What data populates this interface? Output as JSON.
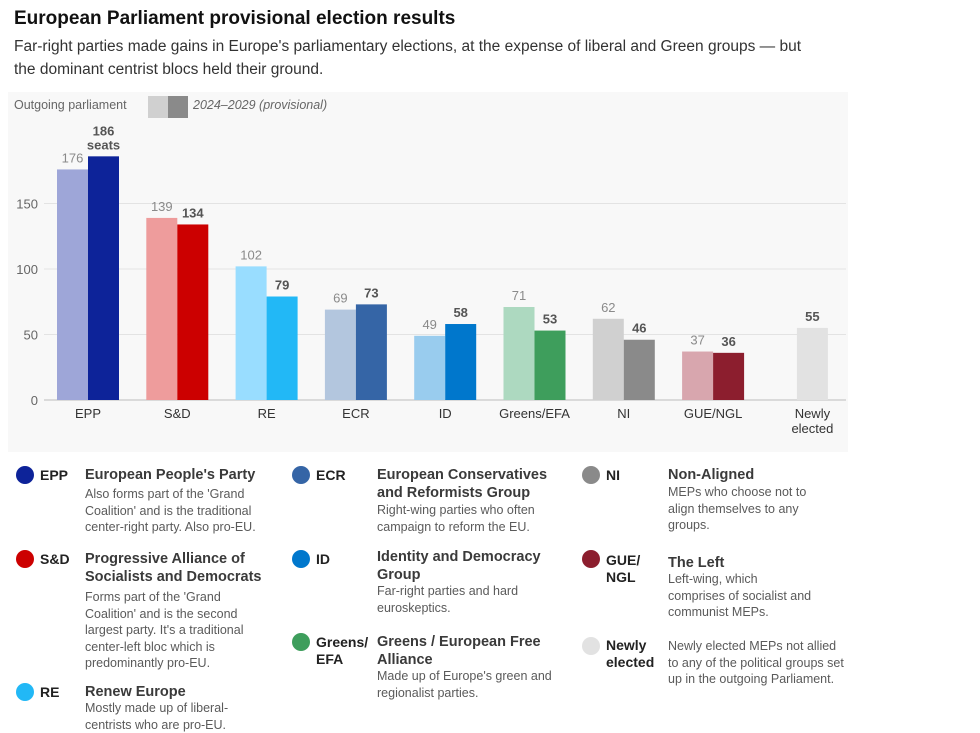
{
  "title": "European Parliament provisional election results",
  "subtitle": "Far-right parties made gains in Europe's parliamentary elections, at the expense of liberal and Green groups — but the dominant centrist blocs held their ground.",
  "key": {
    "outgoing_label": "Outgoing parliament",
    "new_label": "2024–2029 (provisional)",
    "outgoing_swatch": "#d0d0d0",
    "new_swatch": "#8a8a8a"
  },
  "chart_data": {
    "type": "bar",
    "categories": [
      "EPP",
      "S&D",
      "RE",
      "ECR",
      "ID",
      "Greens/EFA",
      "NI",
      "GUE/NGL",
      "Newly elected"
    ],
    "series": [
      {
        "name": "Outgoing parliament",
        "values": [
          176,
          139,
          102,
          69,
          49,
          71,
          62,
          37,
          null
        ]
      },
      {
        "name": "2024–2029 (provisional)",
        "values": [
          186,
          134,
          79,
          73,
          58,
          53,
          46,
          36,
          55
        ]
      }
    ],
    "outgoing_colors": [
      "#9ea6d8",
      "#ee9c9c",
      "#99ddff",
      "#b3c6de",
      "#99ccee",
      "#add9c0",
      "#d0d0d0",
      "#d8a6ae",
      "#e2e2e2"
    ],
    "new_colors": [
      "#0d2399",
      "#cc0000",
      "#22b8f6",
      "#3565a6",
      "#0077cc",
      "#3e9e5c",
      "#8a8a8a",
      "#8c1e2e",
      "#e2e2e2"
    ],
    "y_ticks": [
      0,
      50,
      100,
      150
    ],
    "ylim": [
      0,
      200
    ],
    "first_label_suffix": "seats",
    "grid": true
  },
  "legend": [
    {
      "code": "EPP",
      "color": "#0d2399",
      "name": "European People's Party",
      "desc": "Also forms part of the 'Grand Coalition' and is the traditional center-right party. Also pro-EU."
    },
    {
      "code": "S&D",
      "color": "#cc0000",
      "name": "Progressive Alliance of Socialists and Democrats",
      "desc": "Forms part of the 'Grand Coalition' and is the second largest party. It's a traditional center-left bloc which is predominantly pro-EU."
    },
    {
      "code": "RE",
      "color": "#22b8f6",
      "name": "Renew Europe",
      "desc": "Mostly made up of liberal-centrists who are pro-EU."
    },
    {
      "code": "ECR",
      "color": "#3565a6",
      "name": "European Conservatives and Reformists Group",
      "desc": "Right-wing parties who often campaign to reform the EU."
    },
    {
      "code": "ID",
      "color": "#0077cc",
      "name": "Identity and Democracy Group",
      "desc": "Far-right parties and hard euroskeptics."
    },
    {
      "code": "Greens/ EFA",
      "color": "#3e9e5c",
      "name": "Greens / European Free Alliance",
      "desc": "Made up of Europe's green and regionalist parties."
    },
    {
      "code": "NI",
      "color": "#8a8a8a",
      "name": "Non-Aligned",
      "desc": "MEPs who choose not to align themselves to any groups."
    },
    {
      "code": "GUE/ NGL",
      "color": "#8c1e2e",
      "name": "The Left",
      "desc": "Left-wing, which comprises of socialist and communist MEPs."
    },
    {
      "code": "Newly elected",
      "color": "#e2e2e2",
      "name": "",
      "desc": "Newly elected MEPs not allied to any of the political groups set up in the outgoing Parliament."
    }
  ]
}
